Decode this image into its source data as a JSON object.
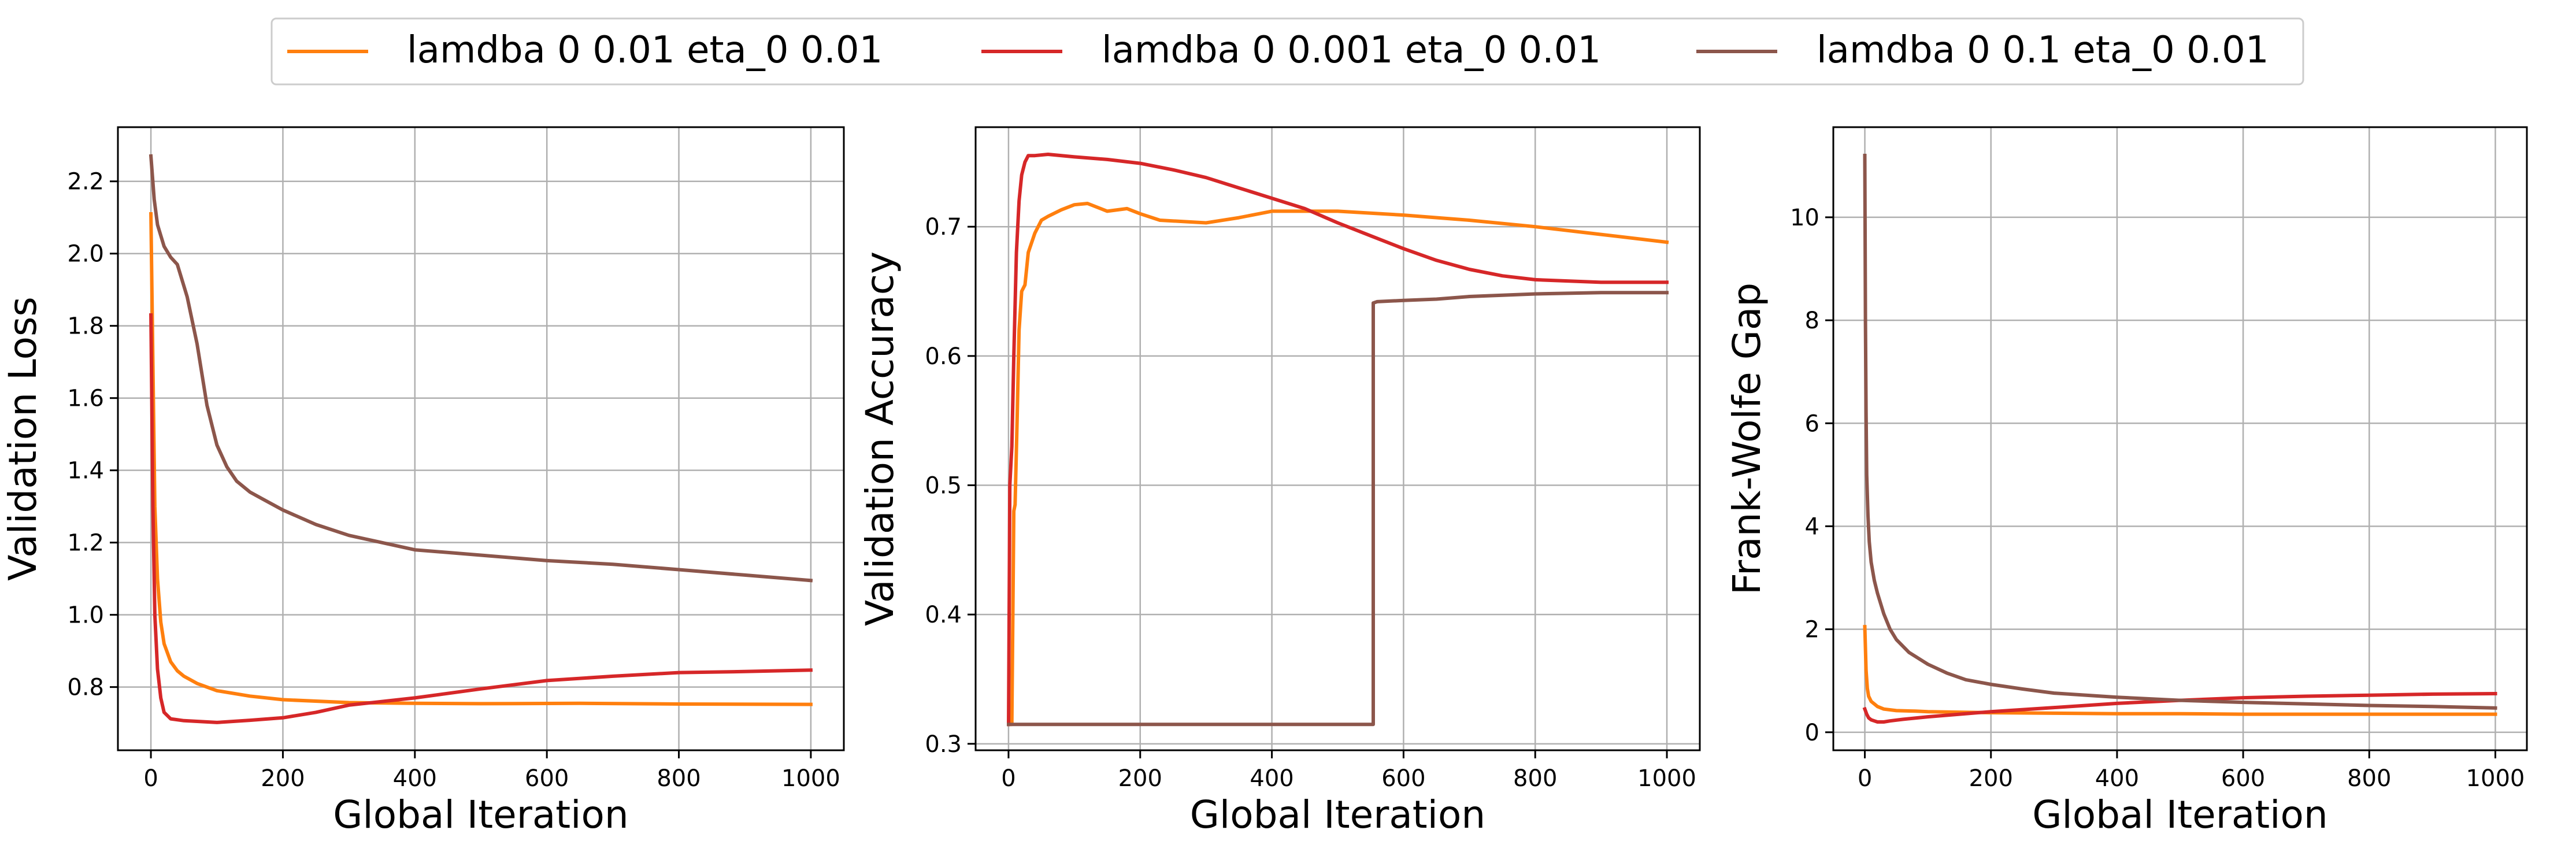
{
  "legend": {
    "placement": "top-center",
    "entries": [
      {
        "label": "lamdba 0 0.01 eta_0 0.01",
        "color": "#ff7f0e"
      },
      {
        "label": "lamdba 0 0.001 eta_0 0.01",
        "color": "#d62728"
      },
      {
        "label": "lamdba 0 0.1 eta_0 0.01",
        "color": "#8c564b"
      }
    ]
  },
  "chart_data": [
    {
      "type": "line",
      "xlabel": "Global Iteration",
      "ylabel": "Validation Loss",
      "xlim": [
        -50,
        1050
      ],
      "ylim": [
        0.625,
        2.35
      ],
      "xticks": [
        0,
        200,
        400,
        600,
        800,
        1000
      ],
      "yticks": [
        0.8,
        1.0,
        1.2,
        1.4,
        1.6,
        1.8,
        2.0,
        2.2
      ],
      "ytick_labels": [
        "0.8",
        "1.0",
        "1.2",
        "1.4",
        "1.6",
        "1.8",
        "2.0",
        "2.2"
      ],
      "grid": true,
      "series": [
        {
          "name": "lamdba 0 0.01 eta_0 0.01",
          "color": "#ff7f0e",
          "x": [
            0,
            3,
            6,
            10,
            15,
            20,
            30,
            40,
            50,
            70,
            100,
            150,
            200,
            300,
            400,
            500,
            650,
            800,
            1000
          ],
          "y": [
            2.11,
            1.7,
            1.3,
            1.1,
            0.98,
            0.92,
            0.87,
            0.845,
            0.83,
            0.81,
            0.79,
            0.775,
            0.765,
            0.757,
            0.755,
            0.754,
            0.755,
            0.753,
            0.752
          ]
        },
        {
          "name": "lamdba 0 0.001 eta_0 0.01",
          "color": "#d62728",
          "x": [
            0,
            3,
            6,
            10,
            15,
            20,
            30,
            50,
            100,
            150,
            200,
            250,
            300,
            400,
            500,
            600,
            700,
            800,
            900,
            1000
          ],
          "y": [
            1.83,
            1.3,
            1.0,
            0.85,
            0.77,
            0.73,
            0.712,
            0.707,
            0.702,
            0.708,
            0.715,
            0.73,
            0.75,
            0.77,
            0.795,
            0.818,
            0.83,
            0.84,
            0.843,
            0.847
          ]
        },
        {
          "name": "lamdba 0 0.1 eta_0 0.01",
          "color": "#8c564b",
          "x": [
            0,
            5,
            10,
            20,
            30,
            40,
            55,
            70,
            85,
            100,
            115,
            130,
            150,
            170,
            200,
            250,
            300,
            400,
            500,
            600,
            700,
            800,
            900,
            1000
          ],
          "y": [
            2.27,
            2.15,
            2.08,
            2.02,
            1.99,
            1.97,
            1.88,
            1.75,
            1.58,
            1.47,
            1.41,
            1.37,
            1.34,
            1.32,
            1.29,
            1.25,
            1.22,
            1.18,
            1.165,
            1.15,
            1.14,
            1.125,
            1.11,
            1.095
          ]
        }
      ]
    },
    {
      "type": "line",
      "xlabel": "Global Iteration",
      "ylabel": "Validation Accuracy",
      "xlim": [
        -50,
        1050
      ],
      "ylim": [
        0.295,
        0.777
      ],
      "xticks": [
        0,
        200,
        400,
        600,
        800,
        1000
      ],
      "yticks": [
        0.3,
        0.4,
        0.5,
        0.6,
        0.7
      ],
      "ytick_labels": [
        "0.3",
        "0.4",
        "0.5",
        "0.6",
        "0.7"
      ],
      "grid": true,
      "series": [
        {
          "name": "lamdba 0 0.01 eta_0 0.01",
          "color": "#ff7f0e",
          "x": [
            0,
            5,
            8,
            10,
            13,
            16,
            20,
            25,
            30,
            40,
            50,
            60,
            80,
            100,
            120,
            150,
            180,
            200,
            230,
            300,
            350,
            400,
            500,
            600,
            700,
            800,
            900,
            1000
          ],
          "y": [
            0.315,
            0.315,
            0.48,
            0.485,
            0.55,
            0.62,
            0.65,
            0.655,
            0.68,
            0.695,
            0.705,
            0.708,
            0.713,
            0.717,
            0.718,
            0.712,
            0.714,
            0.71,
            0.705,
            0.703,
            0.707,
            0.712,
            0.712,
            0.709,
            0.705,
            0.7,
            0.694,
            0.688
          ]
        },
        {
          "name": "lamdba 0 0.001 eta_0 0.01",
          "color": "#d62728",
          "x": [
            0,
            2,
            5,
            8,
            12,
            16,
            20,
            25,
            30,
            40,
            60,
            100,
            150,
            200,
            250,
            300,
            350,
            400,
            450,
            500,
            550,
            600,
            650,
            700,
            750,
            800,
            900,
            1000
          ],
          "y": [
            0.315,
            0.5,
            0.53,
            0.6,
            0.68,
            0.72,
            0.74,
            0.75,
            0.755,
            0.755,
            0.756,
            0.754,
            0.752,
            0.749,
            0.744,
            0.738,
            0.73,
            0.722,
            0.714,
            0.703,
            0.693,
            0.683,
            0.674,
            0.667,
            0.662,
            0.659,
            0.657,
            0.657
          ]
        },
        {
          "name": "lamdba 0 0.1 eta_0 0.01",
          "color": "#8c564b",
          "x": [
            0,
            554,
            554,
            560,
            600,
            650,
            700,
            750,
            800,
            900,
            1000
          ],
          "y": [
            0.315,
            0.315,
            0.641,
            0.642,
            0.643,
            0.644,
            0.646,
            0.647,
            0.648,
            0.649,
            0.649
          ]
        }
      ]
    },
    {
      "type": "line",
      "xlabel": "Global Iteration",
      "ylabel": "Frank-Wolfe Gap",
      "xlim": [
        -50,
        1050
      ],
      "ylim": [
        -0.35,
        11.75
      ],
      "xticks": [
        0,
        200,
        400,
        600,
        800,
        1000
      ],
      "yticks": [
        0,
        2,
        4,
        6,
        8,
        10
      ],
      "ytick_labels": [
        "0",
        "2",
        "4",
        "6",
        "8",
        "10"
      ],
      "grid": true,
      "series": [
        {
          "name": "lamdba 0 0.01 eta_0 0.01",
          "color": "#ff7f0e",
          "x": [
            0,
            2,
            4,
            6,
            10,
            15,
            20,
            30,
            50,
            80,
            100,
            150,
            200,
            300,
            400,
            500,
            600,
            700,
            800,
            900,
            1000
          ],
          "y": [
            2.05,
            1.2,
            0.85,
            0.7,
            0.6,
            0.55,
            0.5,
            0.45,
            0.42,
            0.41,
            0.4,
            0.39,
            0.38,
            0.37,
            0.36,
            0.36,
            0.35,
            0.35,
            0.35,
            0.35,
            0.35
          ]
        },
        {
          "name": "lamdba 0 0.001 eta_0 0.01",
          "color": "#d62728",
          "x": [
            0,
            3,
            6,
            10,
            15,
            20,
            30,
            40,
            60,
            100,
            150,
            200,
            300,
            400,
            500,
            600,
            700,
            800,
            900,
            1000
          ],
          "y": [
            0.45,
            0.35,
            0.28,
            0.24,
            0.22,
            0.2,
            0.2,
            0.22,
            0.25,
            0.3,
            0.35,
            0.4,
            0.48,
            0.56,
            0.62,
            0.67,
            0.7,
            0.72,
            0.74,
            0.75
          ]
        },
        {
          "name": "lamdba 0 0.1 eta_0 0.01",
          "color": "#8c564b",
          "x": [
            0,
            1,
            2,
            3,
            5,
            7,
            10,
            15,
            20,
            30,
            40,
            50,
            70,
            100,
            130,
            160,
            200,
            250,
            300,
            400,
            500,
            600,
            700,
            800,
            900,
            1000
          ],
          "y": [
            11.2,
            8.0,
            6.2,
            5.0,
            4.2,
            3.7,
            3.3,
            2.95,
            2.7,
            2.3,
            2.0,
            1.8,
            1.55,
            1.32,
            1.15,
            1.02,
            0.93,
            0.84,
            0.76,
            0.68,
            0.62,
            0.58,
            0.55,
            0.52,
            0.5,
            0.47
          ]
        }
      ]
    }
  ]
}
